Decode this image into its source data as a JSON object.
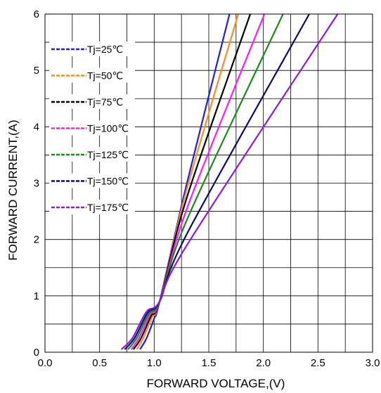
{
  "chart_data": {
    "type": "line",
    "title": "",
    "xlabel": "FORWARD VOLTAGE,(V)",
    "ylabel": "FORWARD CURRENT,(A)",
    "xlim": [
      0,
      3
    ],
    "ylim": [
      0,
      6
    ],
    "x_ticks": [
      "0.0",
      "0.5",
      "1.0",
      "1.5",
      "2.0",
      "2.5",
      "3.0"
    ],
    "y_ticks": [
      "0",
      "1",
      "2",
      "3",
      "4",
      "5",
      "6"
    ],
    "grid": true,
    "legend_position": "top-left",
    "series": [
      {
        "name": "Tj=25℃",
        "color": "#1f1fe6",
        "x": [
          0.87,
          0.93,
          1.0,
          1.05,
          1.3,
          1.69
        ],
        "y": [
          0.05,
          0.25,
          0.6,
          0.9,
          3.0,
          6.0
        ]
      },
      {
        "name": "Tj=50℃",
        "color": "#ff8c1a",
        "x": [
          0.84,
          0.9,
          0.98,
          1.05,
          1.3,
          1.77
        ],
        "y": [
          0.05,
          0.25,
          0.62,
          0.9,
          2.9,
          6.0
        ]
      },
      {
        "name": "Tj=75℃",
        "color": "#000000",
        "x": [
          0.81,
          0.88,
          0.97,
          1.05,
          1.3,
          1.88
        ],
        "y": [
          0.05,
          0.25,
          0.64,
          0.9,
          2.75,
          6.0
        ]
      },
      {
        "name": "Tj=100℃",
        "color": "#ff1aff",
        "x": [
          0.79,
          0.86,
          0.96,
          1.05,
          1.3,
          2.01
        ],
        "y": [
          0.05,
          0.25,
          0.66,
          0.9,
          2.55,
          6.0
        ]
      },
      {
        "name": "Tj=125℃",
        "color": "#1a8c1a",
        "x": [
          0.76,
          0.84,
          0.95,
          1.05,
          1.3,
          2.18
        ],
        "y": [
          0.05,
          0.25,
          0.68,
          0.9,
          2.35,
          6.0
        ]
      },
      {
        "name": "Tj=150℃",
        "color": "#0a0a6e",
        "x": [
          0.73,
          0.82,
          0.94,
          1.05,
          1.3,
          2.42
        ],
        "y": [
          0.05,
          0.25,
          0.7,
          0.9,
          2.1,
          6.0
        ]
      },
      {
        "name": "Tj=175℃",
        "color": "#8a1ae6",
        "x": [
          0.7,
          0.8,
          0.93,
          1.05,
          1.3,
          2.68
        ],
        "y": [
          0.05,
          0.25,
          0.72,
          0.9,
          1.9,
          6.0
        ]
      }
    ]
  }
}
